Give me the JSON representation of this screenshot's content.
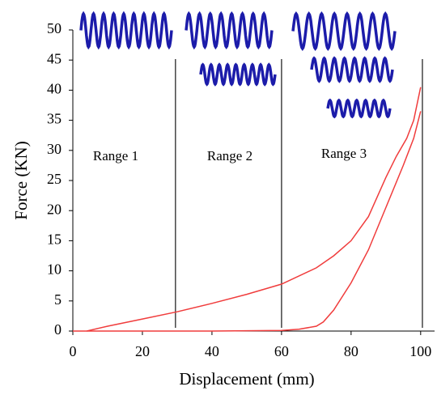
{
  "chart_data": {
    "type": "line",
    "x_label": "Displacement (mm)",
    "y_label": "Force (KN)",
    "xlim": [
      0,
      104
    ],
    "ylim": [
      0,
      50
    ],
    "xticks": [
      0,
      20,
      40,
      60,
      80,
      100
    ],
    "yticks": [
      0,
      5,
      10,
      15,
      20,
      25,
      30,
      35,
      40,
      45,
      50
    ],
    "series": [
      {
        "color": "#f03c3c",
        "x": [
          4,
          10,
          20,
          30,
          40,
          50,
          60,
          70,
          75,
          80,
          85,
          90,
          93,
          96,
          98,
          100
        ],
        "values": [
          0,
          0.8,
          2,
          3.2,
          4.6,
          6.1,
          7.8,
          10.5,
          12.5,
          15,
          19,
          25.5,
          29,
          32,
          35,
          40.5
        ]
      },
      {
        "color": "#f03c3c",
        "x": [
          0,
          20,
          40,
          60,
          65,
          70,
          72,
          75,
          80,
          85,
          90,
          95,
          98,
          100
        ],
        "values": [
          0,
          0,
          0,
          0.1,
          0.3,
          0.8,
          1.5,
          3.5,
          8,
          13.5,
          20.5,
          27.5,
          32,
          36.5
        ]
      }
    ],
    "vlines": [
      29.5,
      60,
      100.5
    ],
    "annotations": [
      "Range 1",
      "Range 2",
      "Range 3"
    ]
  }
}
